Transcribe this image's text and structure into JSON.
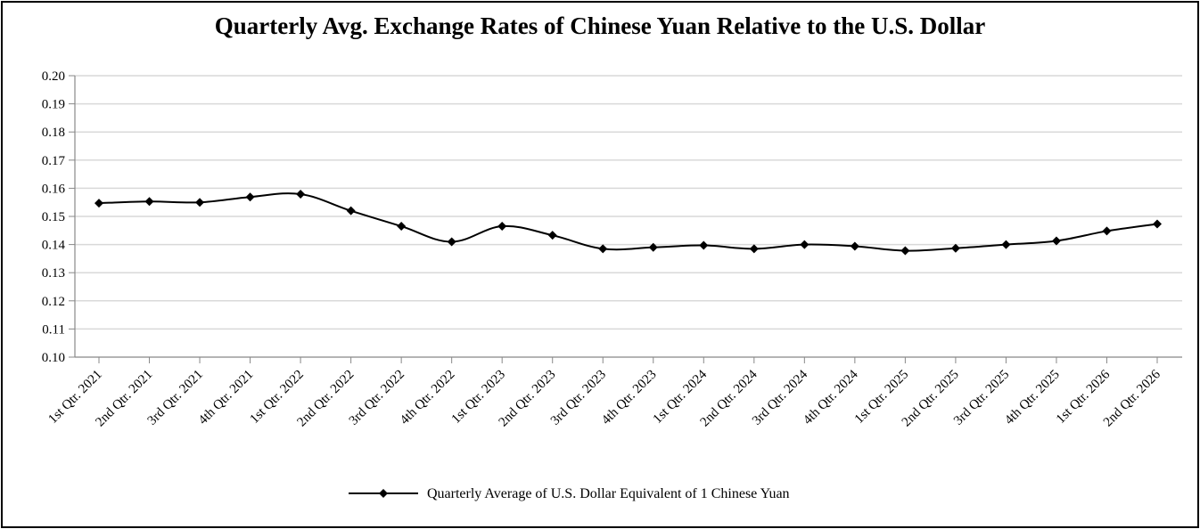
{
  "chart_data": {
    "type": "line",
    "title": "Quarterly Avg. Exchange Rates of Chinese Yuan Relative to the U.S. Dollar",
    "xlabel": "",
    "ylabel": "",
    "ylim": [
      0.1,
      0.2
    ],
    "yticks": [
      "0.20",
      "0.19",
      "0.18",
      "0.17",
      "0.16",
      "0.15",
      "0.14",
      "0.13",
      "0.12",
      "0.11",
      "0.10"
    ],
    "grid": true,
    "legend_position": "bottom",
    "categories": [
      "1st Qtr. 2021",
      "2nd Qtr. 2021",
      "3rd Qtr. 2021",
      "4th Qtr. 2021",
      "1st Qtr. 2022",
      "2nd Qtr. 2022",
      "3rd Qtr. 2022",
      "4th Qtr. 2022",
      "1st Qtr. 2023",
      "2nd Qtr. 2023",
      "3rd Qtr. 2023",
      "4th Qtr. 2023",
      "1st Qtr. 2024",
      "2nd Qtr. 2024",
      "3rd Qtr. 2024",
      "4th Qtr. 2024",
      "1st Qtr. 2025",
      "2nd Qtr. 2025",
      "3rd Qtr. 2025",
      "4th Qtr. 2025",
      "1st Qtr. 2026",
      "2nd Qtr. 2026"
    ],
    "series": [
      {
        "name": "Quarterly Average of U.S. Dollar Equivalent of 1 Chinese Yuan",
        "color": "#000000",
        "marker": "diamond",
        "values": [
          0.1547,
          0.1553,
          0.155,
          0.1569,
          0.1579,
          0.152,
          0.1465,
          0.141,
          0.1465,
          0.1433,
          0.1385,
          0.139,
          0.1397,
          0.1385,
          0.14,
          0.1394,
          0.1378,
          0.1387,
          0.14,
          0.1413,
          0.1448,
          0.1473
        ]
      }
    ]
  }
}
